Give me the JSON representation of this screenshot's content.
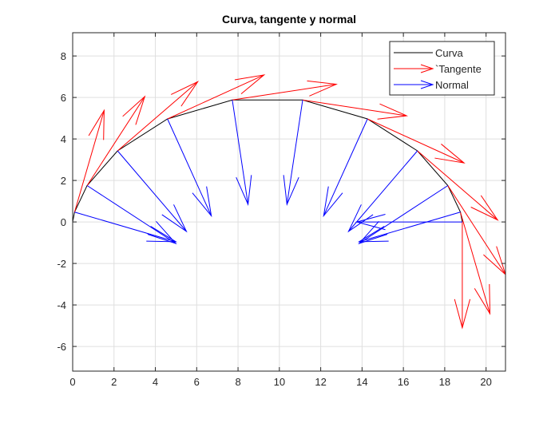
{
  "chart_data": {
    "type": "quiver",
    "title": "Curva, tangente y normal",
    "xlabel": "",
    "ylabel": "",
    "xlim": [
      0,
      20.94
    ],
    "ylim": [
      -7.19,
      9.12
    ],
    "xticks": [
      0,
      2,
      4,
      6,
      8,
      10,
      12,
      14,
      16,
      18,
      20
    ],
    "yticks": [
      -6,
      -4,
      -2,
      0,
      2,
      4,
      6,
      8
    ],
    "grid": true,
    "legend_position": "top-right",
    "legend": [
      "Curva",
      "`Tangente",
      "Normal"
    ],
    "colors": {
      "curve": "#000000",
      "tangent": "#ff0000",
      "normal": "#0000ff",
      "grid": "#dfdfdf",
      "axis": "#262626"
    },
    "curve": {
      "x": [
        0,
        0.092,
        0.698,
        2.172,
        4.587,
        7.723,
        11.127,
        14.263,
        16.678,
        18.152,
        18.758,
        18.85
      ],
      "y": [
        0,
        0.476,
        1.754,
        3.427,
        4.965,
        5.878,
        5.878,
        4.965,
        3.427,
        1.754,
        0.476,
        0
      ]
    },
    "tangent": {
      "u": [
        1.43,
        2.79,
        3.88,
        4.67,
        5.03,
        5.03,
        4.67,
        3.88,
        2.79,
        1.43,
        0
      ],
      "v": [
        4.9,
        4.29,
        3.33,
        2.12,
        0.76,
        -0.76,
        -2.12,
        -3.33,
        -4.29,
        -4.9,
        -5.1
      ]
    },
    "normal": {
      "u": [
        4.9,
        4.29,
        3.33,
        2.12,
        0.76,
        -0.76,
        -2.12,
        -3.33,
        -4.29,
        -4.9,
        -5.1
      ],
      "v": [
        -1.43,
        -2.79,
        -3.88,
        -4.67,
        -5.03,
        -5.03,
        -4.67,
        -3.88,
        -2.79,
        -1.43,
        0
      ]
    }
  }
}
